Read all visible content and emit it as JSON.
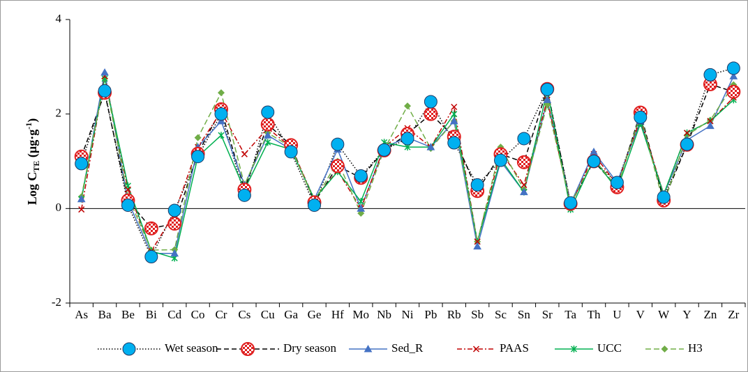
{
  "chart_data": {
    "type": "line",
    "ylabel_parts": [
      "Log C",
      "TE",
      " (µg·g",
      "-1",
      ")"
    ],
    "categories": [
      "As",
      "Ba",
      "Be",
      "Bi",
      "Cd",
      "Co",
      "Cr",
      "Cs",
      "Cu",
      "Ga",
      "Ge",
      "Hf",
      "Mo",
      "Nb",
      "Ni",
      "Pb",
      "Rb",
      "Sb",
      "Sc",
      "Sn",
      "Sr",
      "Ta",
      "Th",
      "U",
      "V",
      "W",
      "Y",
      "Zn",
      "Zr"
    ],
    "ylim": [
      -2,
      4
    ],
    "yticks": [
      -2,
      0,
      2,
      4
    ],
    "series": [
      {
        "name": "Wet season",
        "color": "#00b0f0",
        "line_color": "#000000",
        "dash": "1.5,2.5",
        "marker": "circle",
        "values": [
          0.95,
          2.49,
          0.07,
          -1.02,
          -0.04,
          1.1,
          2.0,
          0.28,
          2.04,
          1.2,
          0.07,
          1.36,
          0.69,
          1.24,
          1.48,
          2.26,
          1.39,
          0.5,
          1.02,
          1.48,
          2.52,
          0.12,
          1.0,
          0.55,
          1.93,
          0.24,
          1.36,
          2.83,
          2.97
        ]
      },
      {
        "name": "Dry season",
        "color": "#e02020",
        "line_color": "#000000",
        "dash": "7,4",
        "marker": "checker",
        "values": [
          1.1,
          2.45,
          0.17,
          -0.42,
          -0.32,
          1.16,
          2.1,
          0.4,
          1.78,
          1.34,
          0.13,
          0.9,
          0.65,
          1.23,
          1.58,
          2.0,
          1.52,
          0.37,
          1.15,
          0.98,
          2.53,
          0.1,
          1.0,
          0.45,
          2.03,
          0.17,
          1.35,
          2.63,
          2.47
        ]
      },
      {
        "name": "Sed_R",
        "color": "#4472c4",
        "dash": "",
        "marker": "triangle",
        "values": [
          0.2,
          2.88,
          0.15,
          -0.95,
          -0.95,
          1.3,
          1.85,
          0.5,
          1.55,
          1.25,
          0.2,
          1.25,
          0.0,
          1.3,
          1.5,
          1.3,
          1.85,
          -0.8,
          1.0,
          0.35,
          2.3,
          0.1,
          1.2,
          0.55,
          1.85,
          0.3,
          1.45,
          1.75,
          2.8
        ]
      },
      {
        "name": "PAAS",
        "color": "#c00000",
        "dash": "7,3,2,3",
        "marker": "x",
        "values": [
          -0.02,
          2.8,
          0.4,
          -0.9,
          -0.1,
          1.3,
          2.05,
          1.15,
          1.7,
          1.3,
          0.2,
          0.8,
          0.0,
          1.3,
          1.7,
          1.3,
          2.15,
          -0.7,
          1.2,
          0.5,
          2.3,
          0.05,
          1.15,
          0.5,
          1.9,
          0.3,
          1.6,
          1.85,
          2.35
        ]
      },
      {
        "name": "UCC",
        "color": "#00b050",
        "dash": "",
        "marker": "star",
        "values": [
          0.2,
          2.75,
          0.48,
          -0.9,
          -1.05,
          1.1,
          1.55,
          0.4,
          1.4,
          1.25,
          0.2,
          0.78,
          0.15,
          1.4,
          1.3,
          1.3,
          2.0,
          -0.7,
          1.05,
          0.35,
          2.5,
          -0.02,
          1.05,
          0.4,
          1.8,
          0.3,
          1.6,
          1.85,
          2.3
        ]
      },
      {
        "name": "H3",
        "color": "#70ad47",
        "dash": "8,4",
        "marker": "diamond",
        "values": [
          0.25,
          2.75,
          0.25,
          -0.88,
          -0.87,
          1.5,
          2.45,
          0.5,
          1.6,
          1.3,
          0.15,
          1.0,
          -0.1,
          1.25,
          2.17,
          1.27,
          1.85,
          -0.7,
          1.3,
          0.4,
          2.2,
          0.1,
          1.05,
          0.45,
          1.98,
          0.1,
          1.55,
          1.87,
          2.62
        ]
      }
    ]
  }
}
